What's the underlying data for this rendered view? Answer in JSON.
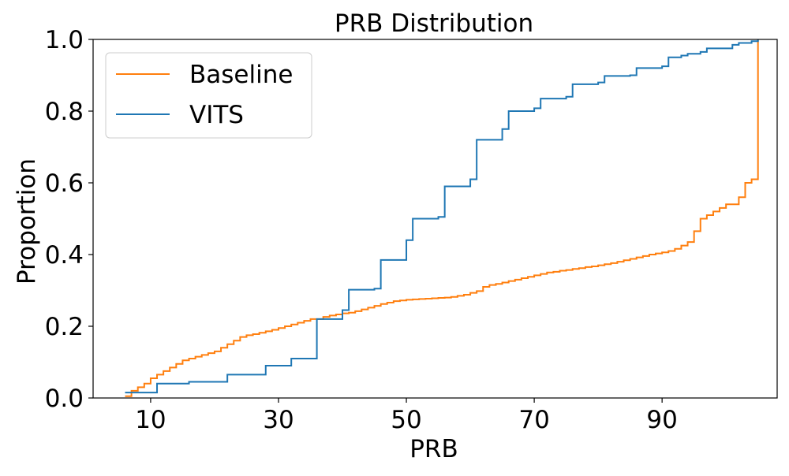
{
  "chart_data": {
    "type": "line",
    "step": true,
    "title": "PRB Distribution",
    "xlabel": "PRB",
    "ylabel": "Proportion",
    "xlim": [
      1,
      108
    ],
    "ylim": [
      0,
      1.0
    ],
    "xticks": [
      10,
      30,
      50,
      70,
      90
    ],
    "yticks": [
      0.0,
      0.2,
      0.4,
      0.6,
      0.8,
      1.0
    ],
    "xtick_labels": [
      "10",
      "30",
      "50",
      "70",
      "90"
    ],
    "ytick_labels": [
      "0.0",
      "0.2",
      "0.4",
      "0.6",
      "0.8",
      "1.0"
    ],
    "grid": false,
    "legend_position": "top-left",
    "series": [
      {
        "name": "Baseline",
        "color": "#ff7f0e",
        "x": [
          6,
          7,
          8,
          9,
          10,
          11,
          12,
          13,
          14,
          15,
          16,
          17,
          18,
          19,
          20,
          21,
          22,
          23,
          24,
          25,
          26,
          27,
          28,
          29,
          30,
          31,
          32,
          33,
          34,
          35,
          36,
          37,
          38,
          39,
          40,
          41,
          42,
          43,
          44,
          45,
          46,
          47,
          48,
          49,
          50,
          51,
          52,
          53,
          54,
          55,
          56,
          57,
          58,
          59,
          60,
          61,
          62,
          63,
          64,
          65,
          66,
          67,
          68,
          69,
          70,
          71,
          72,
          73,
          74,
          75,
          76,
          77,
          78,
          79,
          80,
          81,
          82,
          83,
          84,
          85,
          86,
          87,
          88,
          89,
          90,
          91,
          92,
          93,
          94,
          95,
          96,
          97,
          98,
          99,
          100,
          101,
          102,
          103,
          104,
          105
        ],
        "y": [
          0.005,
          0.02,
          0.03,
          0.04,
          0.055,
          0.065,
          0.075,
          0.085,
          0.095,
          0.105,
          0.11,
          0.115,
          0.12,
          0.125,
          0.13,
          0.14,
          0.15,
          0.16,
          0.17,
          0.175,
          0.178,
          0.182,
          0.186,
          0.19,
          0.195,
          0.2,
          0.205,
          0.21,
          0.215,
          0.22,
          0.22,
          0.226,
          0.23,
          0.233,
          0.236,
          0.238,
          0.242,
          0.247,
          0.252,
          0.257,
          0.262,
          0.266,
          0.27,
          0.272,
          0.274,
          0.275,
          0.276,
          0.277,
          0.278,
          0.279,
          0.28,
          0.282,
          0.285,
          0.288,
          0.293,
          0.298,
          0.31,
          0.315,
          0.318,
          0.322,
          0.326,
          0.33,
          0.334,
          0.338,
          0.342,
          0.346,
          0.35,
          0.352,
          0.355,
          0.357,
          0.36,
          0.362,
          0.365,
          0.367,
          0.37,
          0.373,
          0.376,
          0.38,
          0.384,
          0.388,
          0.392,
          0.396,
          0.4,
          0.403,
          0.406,
          0.41,
          0.416,
          0.425,
          0.435,
          0.465,
          0.5,
          0.51,
          0.52,
          0.53,
          0.54,
          0.54,
          0.56,
          0.6,
          0.61,
          1.0
        ]
      },
      {
        "name": "VITS",
        "color": "#1f77b4",
        "x": [
          6,
          11,
          16,
          22,
          28,
          32,
          36,
          40,
          41,
          45,
          46,
          50,
          51,
          55,
          56,
          60,
          61,
          65,
          66,
          70,
          71,
          75,
          76,
          80,
          81,
          85,
          86,
          90,
          91,
          93,
          94,
          96,
          97,
          101,
          102,
          104,
          105
        ],
        "y": [
          0.015,
          0.04,
          0.045,
          0.065,
          0.09,
          0.11,
          0.22,
          0.245,
          0.302,
          0.305,
          0.385,
          0.44,
          0.5,
          0.505,
          0.59,
          0.61,
          0.72,
          0.75,
          0.8,
          0.808,
          0.835,
          0.84,
          0.875,
          0.88,
          0.898,
          0.9,
          0.92,
          0.925,
          0.95,
          0.955,
          0.96,
          0.965,
          0.975,
          0.985,
          0.99,
          0.995,
          1.0
        ]
      }
    ]
  }
}
